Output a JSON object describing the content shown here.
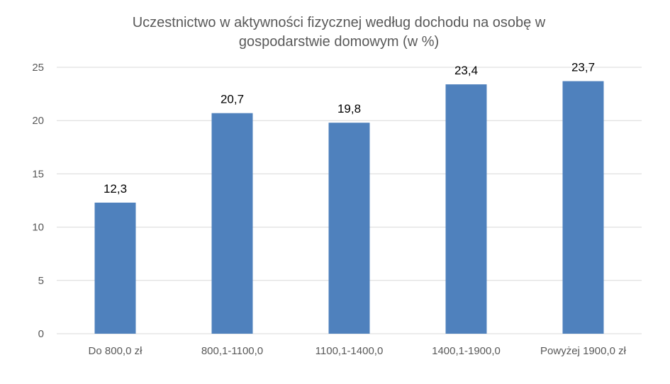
{
  "chart_data": {
    "type": "bar",
    "title_lines": [
      "Uczestnictwo w aktywności fizycznej według dochodu na osobę w",
      "gospodarstwie domowym (w %)"
    ],
    "categories": [
      "Do 800,0 zł",
      "800,1-1100,0",
      "1100,1-1400,0",
      "1400,1-1900,0",
      "Powyżej 1900,0 zł"
    ],
    "values": [
      12.3,
      20.7,
      19.8,
      23.4,
      23.7
    ],
    "data_labels": [
      "12,3",
      "20,7",
      "19,8",
      "23,4",
      "23,7"
    ],
    "ylim": [
      0,
      25
    ],
    "yticks": [
      0,
      5,
      10,
      15,
      20,
      25
    ],
    "grid": true,
    "legend": "none",
    "bar_color": "#4f81bd"
  }
}
